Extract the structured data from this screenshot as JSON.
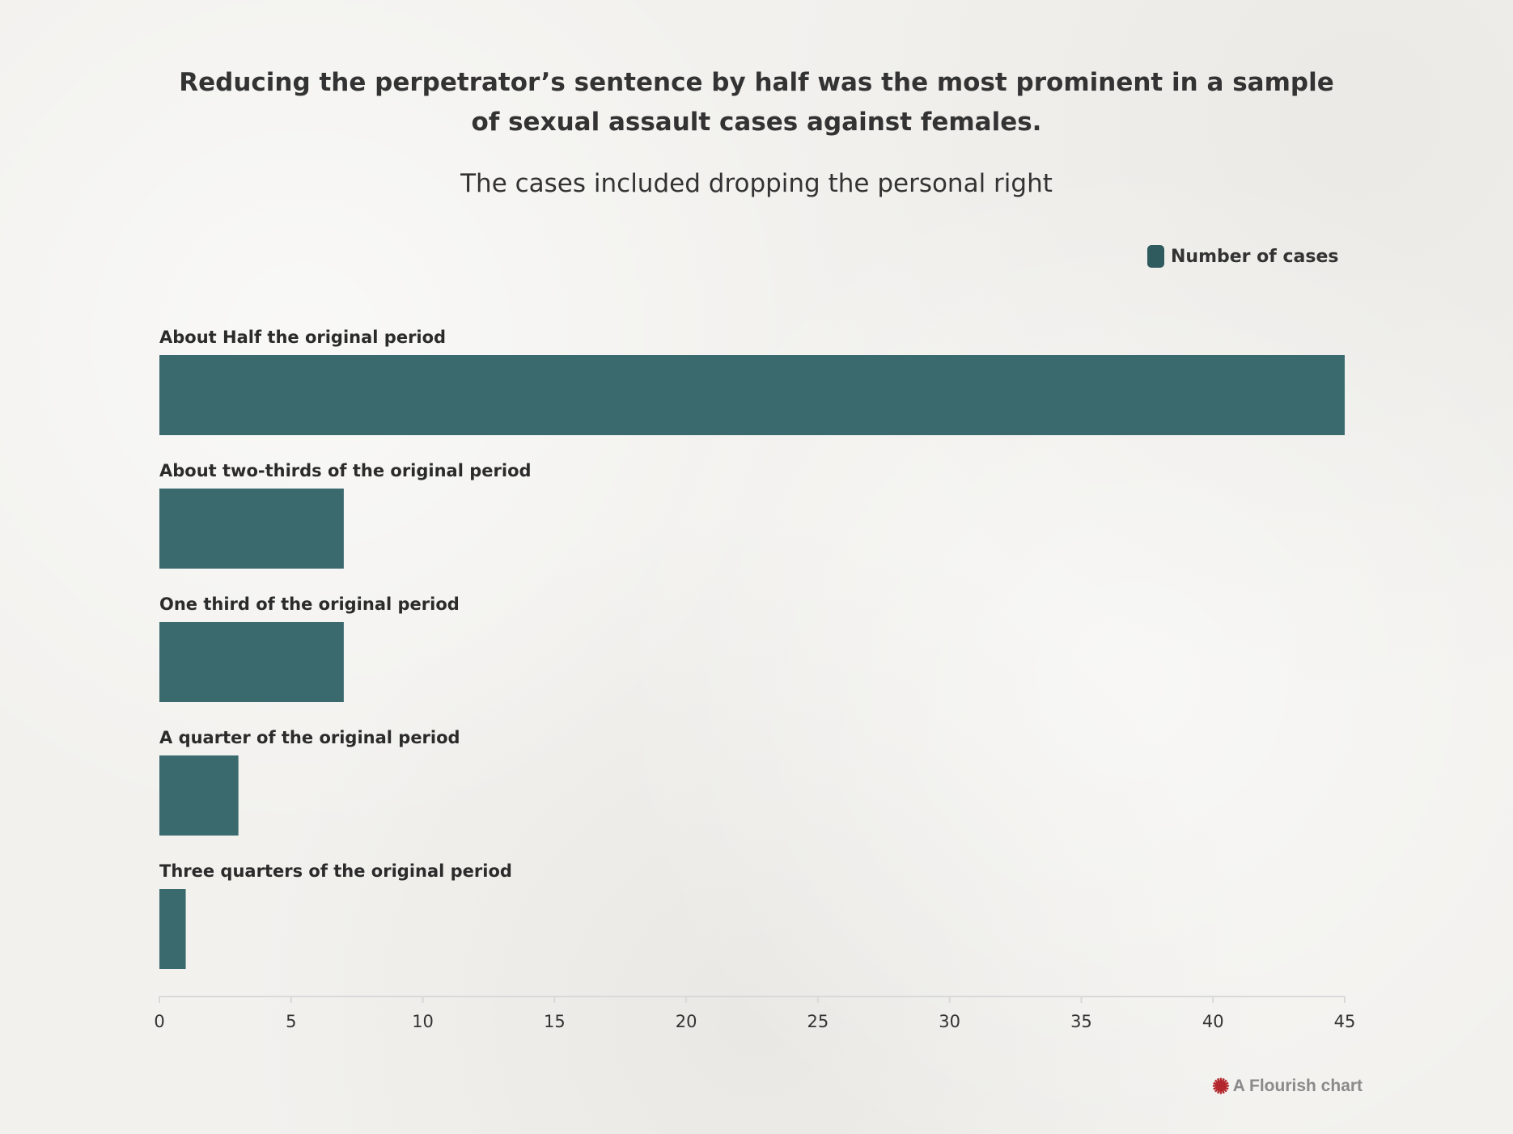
{
  "header": {
    "title": "Reducing the perpetrator’s sentence by half was the most prominent in a sample of sexual assault cases against females.",
    "subtitle": "The cases included dropping the personal right"
  },
  "legend": {
    "label": "Number of cases"
  },
  "colors": {
    "bar": "#3b6a6e",
    "legend_swatch": "#2f5a5e",
    "axis": "#d9d9d9",
    "credit_icon": "#b3262b"
  },
  "icons": {
    "credit": "flourish-sparkle-icon"
  },
  "chart_data": {
    "type": "bar",
    "orientation": "horizontal",
    "title": "Reducing the perpetrator’s sentence by half was the most prominent in a sample of sexual assault cases against females.",
    "subtitle": "The cases included dropping the personal right",
    "categories": [
      "About Half the original period",
      "About two-thirds of the original period",
      "One third of the original period",
      "A quarter of the original period",
      "Three quarters of the original period"
    ],
    "series": [
      {
        "name": "Number of cases",
        "values": [
          45,
          7,
          7,
          3,
          1
        ]
      }
    ],
    "xlim": [
      0,
      45
    ],
    "xticks": [
      0,
      5,
      10,
      15,
      20,
      25,
      30,
      35,
      40,
      45
    ],
    "grid": false,
    "legend_position": "top-right"
  },
  "footer": {
    "credit": "A Flourish chart"
  }
}
